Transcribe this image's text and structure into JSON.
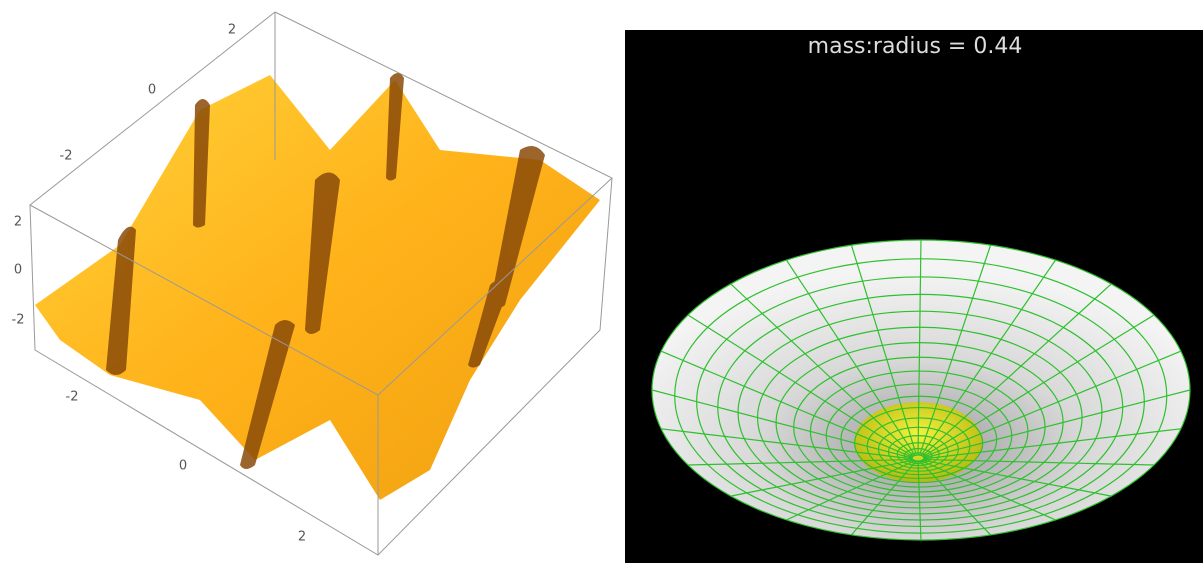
{
  "left_plot": {
    "back_axis_ticks": [
      "2",
      "0",
      "-2"
    ],
    "vertical_axis_ticks": [
      "2",
      "0",
      "-2"
    ],
    "front_axis_ticks": [
      "-2",
      "0",
      "2"
    ]
  },
  "right_plot": {
    "title": "mass:radius = 0.44"
  }
}
